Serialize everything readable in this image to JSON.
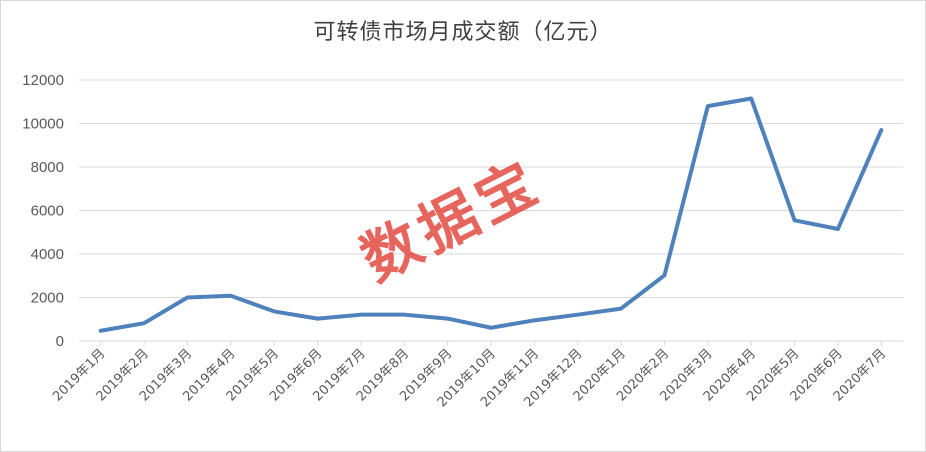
{
  "chart_data": {
    "type": "line",
    "title": "可转债市场月成交额（亿元）",
    "categories": [
      "2019年1月",
      "2019年2月",
      "2019年3月",
      "2019年4月",
      "2019年5月",
      "2019年6月",
      "2019年7月",
      "2019年8月",
      "2019年9月",
      "2019年10月",
      "2019年11月",
      "2019年12月",
      "2020年1月",
      "2020年2月",
      "2020年3月",
      "2020年4月",
      "2020年5月",
      "2020年6月",
      "2020年7月"
    ],
    "series": [
      {
        "values": [
          470,
          820,
          2000,
          2080,
          1360,
          1030,
          1210,
          1210,
          1030,
          610,
          950,
          1210,
          1490,
          3020,
          10800,
          11150,
          5550,
          5150,
          9700
        ]
      }
    ],
    "ylim": [
      0,
      12000
    ],
    "yticks": [
      0,
      2000,
      4000,
      6000,
      8000,
      10000,
      12000
    ],
    "grid": true,
    "line_color": "#4f81bd",
    "watermark": "数据宝",
    "watermark_color": "#e03c32"
  }
}
